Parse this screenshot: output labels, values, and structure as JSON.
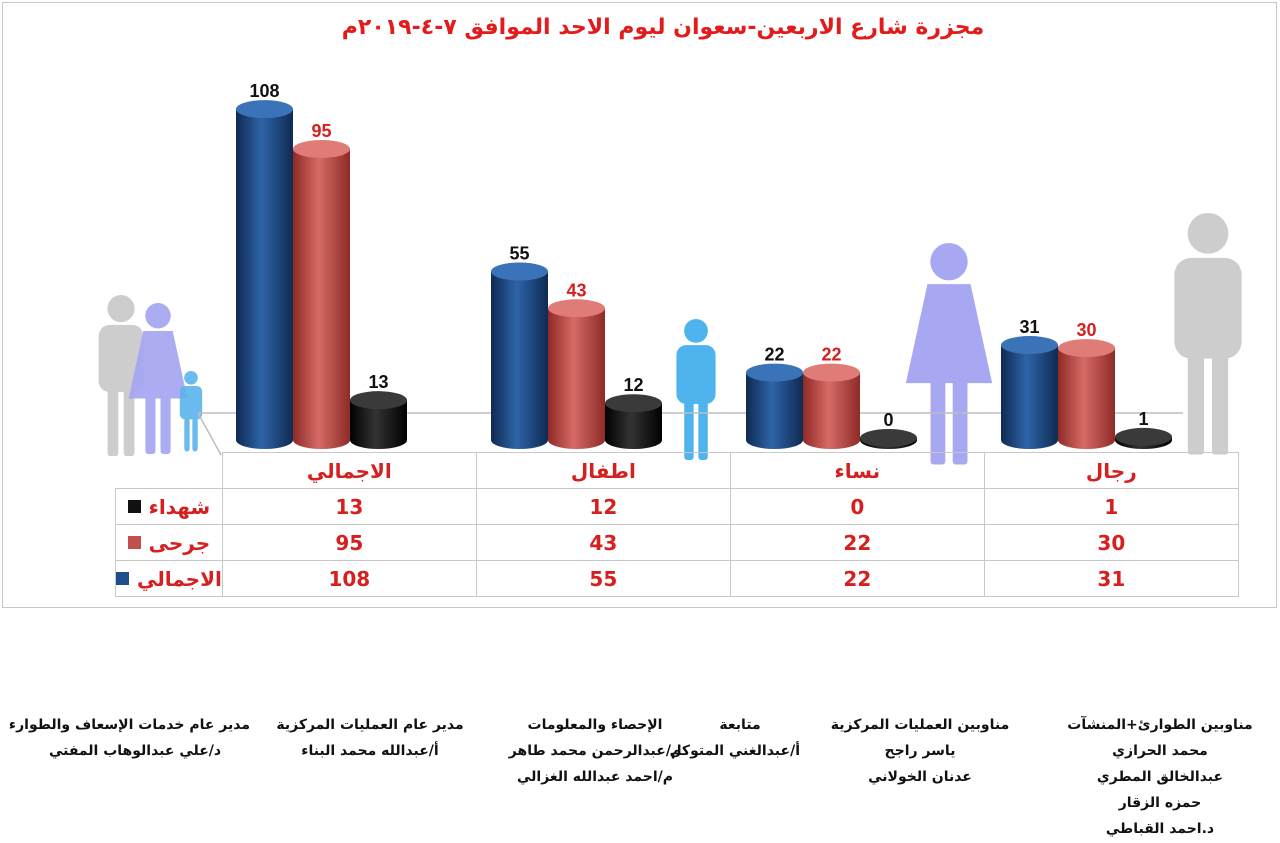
{
  "chart_data": {
    "type": "bar",
    "title": "مجزرة شارع الاربعين-سعوان  ليوم الاحد الموافق ٧-٤-٢٠١٩م",
    "categories": [
      "الاجمالي",
      "اطفال",
      "نساء",
      "رجال"
    ],
    "series": [
      {
        "name": "الاجمالي",
        "color": "#1f4e8c",
        "values": [
          108,
          55,
          22,
          31
        ]
      },
      {
        "name": "جرحى",
        "color": "#c0504d",
        "values": [
          95,
          43,
          22,
          30
        ]
      },
      {
        "name": "شهداء",
        "color": "#111111",
        "values": [
          13,
          12,
          0,
          1
        ]
      }
    ],
    "ylim": [
      0,
      110
    ],
    "table_rows": [
      {
        "label": "شهداء",
        "color": "#111111",
        "values": [
          "13",
          "12",
          "0",
          "1"
        ]
      },
      {
        "label": "جرحى",
        "color": "#c0504d",
        "values": [
          "95",
          "43",
          "22",
          "30"
        ]
      },
      {
        "label": "الاجمالي",
        "color": "#1f4e8c",
        "values": [
          "108",
          "55",
          "22",
          "31"
        ]
      }
    ]
  },
  "footer": [
    {
      "lines": [
        "مدير عام خدمات الإسعاف والطوارء",
        "د/علي عبدالوهاب المفتي"
      ]
    },
    {
      "lines": [
        "مدير عام العمليات المركزية",
        "أ/عبدالله محمد البناء"
      ]
    },
    {
      "lines": [
        "الإحصاء والمعلومات",
        "م/عبدالرحمن محمد طاهر",
        "م/احمد عبدالله الغزالي"
      ]
    },
    {
      "lines": [
        "متابعة",
        "أ/عبدالغني المتوكل"
      ]
    },
    {
      "lines": [
        "مناوبين العمليات المركزية",
        "ياسر راجح",
        "عدنان الخولاني"
      ]
    },
    {
      "lines": [
        "مناوبين الطوارئ+المنشآت",
        "محمد الحرازي",
        "عبدالخالق المطري",
        "حمزه الزقار",
        "د.احمد القباطي"
      ]
    }
  ]
}
